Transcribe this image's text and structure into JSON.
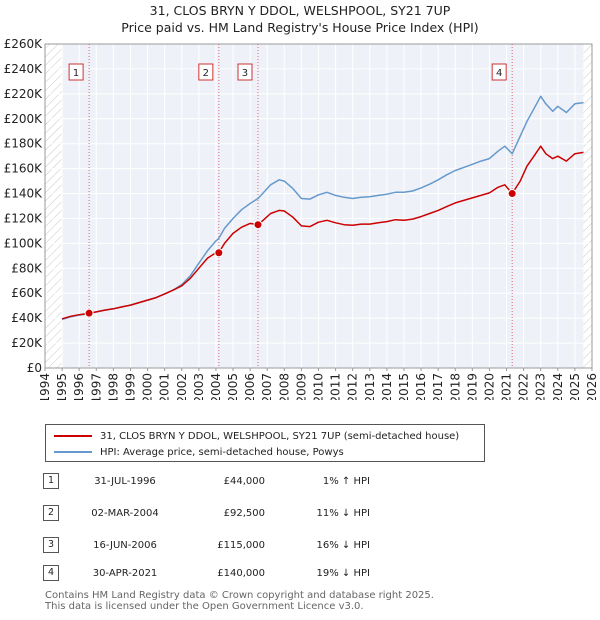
{
  "title_line1": "31, CLOS BRYN Y DDOL, WELSHPOOL, SY21 7UP",
  "title_line2": "Price paid vs. HM Land Registry's House Price Index (HPI)",
  "chart_data": {
    "type": "line",
    "xlim": [
      1994,
      2026
    ],
    "ylim": [
      0,
      260000
    ],
    "x_ticks": [
      1994,
      1995,
      1996,
      1997,
      1998,
      1999,
      2000,
      2001,
      2002,
      2003,
      2004,
      2005,
      2006,
      2007,
      2008,
      2009,
      2010,
      2011,
      2012,
      2013,
      2014,
      2015,
      2016,
      2017,
      2018,
      2019,
      2020,
      2021,
      2022,
      2023,
      2024,
      2025,
      2026
    ],
    "y_ticks": [
      0,
      20000,
      40000,
      60000,
      80000,
      100000,
      120000,
      140000,
      160000,
      180000,
      200000,
      220000,
      240000,
      260000
    ],
    "y_tick_labels": [
      "£0",
      "£20K",
      "£40K",
      "£60K",
      "£80K",
      "£100K",
      "£120K",
      "£140K",
      "£160K",
      "£180K",
      "£200K",
      "£220K",
      "£240K",
      "£260K"
    ],
    "data_start": 1995.0,
    "data_end": 2025.5,
    "grid": true,
    "series": [
      {
        "name": "31, CLOS BRYN Y DDOL, WELSHPOOL, SY21 7UP (semi-detached house)",
        "color": "#cc0000",
        "points": [
          [
            1995.0,
            39500
          ],
          [
            1995.5,
            41500
          ],
          [
            1996.0,
            42800
          ],
          [
            1996.58,
            44000
          ],
          [
            1997.0,
            45000
          ],
          [
            1997.5,
            46500
          ],
          [
            1998.0,
            47500
          ],
          [
            1998.5,
            49000
          ],
          [
            1999.0,
            50500
          ],
          [
            1999.5,
            52500
          ],
          [
            2000.0,
            54500
          ],
          [
            2000.5,
            56500
          ],
          [
            2001.0,
            59500
          ],
          [
            2001.5,
            62500
          ],
          [
            2002.0,
            66000
          ],
          [
            2002.5,
            72000
          ],
          [
            2003.0,
            80000
          ],
          [
            2003.5,
            88000
          ],
          [
            2004.0,
            92500
          ],
          [
            2004.17,
            92500
          ],
          [
            2004.5,
            100000
          ],
          [
            2005.0,
            108000
          ],
          [
            2005.5,
            113000
          ],
          [
            2006.0,
            116000
          ],
          [
            2006.46,
            115000
          ],
          [
            2006.8,
            119000
          ],
          [
            2007.2,
            124000
          ],
          [
            2007.7,
            126500
          ],
          [
            2008.0,
            126000
          ],
          [
            2008.5,
            121000
          ],
          [
            2009.0,
            114000
          ],
          [
            2009.5,
            113500
          ],
          [
            2010.0,
            117000
          ],
          [
            2010.5,
            118500
          ],
          [
            2011.0,
            116500
          ],
          [
            2011.5,
            115000
          ],
          [
            2012.0,
            114500
          ],
          [
            2012.5,
            115500
          ],
          [
            2013.0,
            115500
          ],
          [
            2013.5,
            116500
          ],
          [
            2014.0,
            117500
          ],
          [
            2014.5,
            119000
          ],
          [
            2015.0,
            118500
          ],
          [
            2015.5,
            119500
          ],
          [
            2016.0,
            121500
          ],
          [
            2016.5,
            124000
          ],
          [
            2017.0,
            126500
          ],
          [
            2017.5,
            129500
          ],
          [
            2018.0,
            132500
          ],
          [
            2018.5,
            134500
          ],
          [
            2019.0,
            136500
          ],
          [
            2019.5,
            138500
          ],
          [
            2020.0,
            140500
          ],
          [
            2020.5,
            145000
          ],
          [
            2020.9,
            147000
          ],
          [
            2021.33,
            140000
          ],
          [
            2021.8,
            150000
          ],
          [
            2022.2,
            162000
          ],
          [
            2022.6,
            170000
          ],
          [
            2023.0,
            178000
          ],
          [
            2023.3,
            172000
          ],
          [
            2023.7,
            168000
          ],
          [
            2024.0,
            170000
          ],
          [
            2024.5,
            166000
          ],
          [
            2025.0,
            172000
          ],
          [
            2025.5,
            173000
          ]
        ]
      },
      {
        "name": "HPI: Average price, semi-detached house, Powys",
        "color": "#6699cc",
        "points": [
          [
            1995.0,
            39000
          ],
          [
            1995.5,
            41000
          ],
          [
            1996.0,
            42500
          ],
          [
            1996.58,
            43500
          ],
          [
            1997.0,
            45000
          ],
          [
            1997.5,
            46500
          ],
          [
            1998.0,
            47500
          ],
          [
            1998.5,
            49000
          ],
          [
            1999.0,
            50500
          ],
          [
            1999.5,
            52500
          ],
          [
            2000.0,
            54500
          ],
          [
            2000.5,
            56500
          ],
          [
            2001.0,
            59500
          ],
          [
            2001.5,
            62500
          ],
          [
            2002.0,
            67000
          ],
          [
            2002.5,
            74000
          ],
          [
            2003.0,
            84000
          ],
          [
            2003.5,
            94000
          ],
          [
            2004.0,
            102000
          ],
          [
            2004.17,
            104000
          ],
          [
            2004.5,
            112000
          ],
          [
            2005.0,
            120000
          ],
          [
            2005.5,
            127000
          ],
          [
            2006.0,
            132000
          ],
          [
            2006.46,
            136000
          ],
          [
            2006.8,
            141000
          ],
          [
            2007.2,
            147000
          ],
          [
            2007.7,
            151000
          ],
          [
            2008.0,
            150000
          ],
          [
            2008.5,
            144000
          ],
          [
            2009.0,
            136000
          ],
          [
            2009.5,
            135500
          ],
          [
            2010.0,
            139000
          ],
          [
            2010.5,
            141000
          ],
          [
            2011.0,
            138500
          ],
          [
            2011.5,
            137000
          ],
          [
            2012.0,
            136000
          ],
          [
            2012.5,
            137000
          ],
          [
            2013.0,
            137500
          ],
          [
            2013.5,
            138500
          ],
          [
            2014.0,
            139500
          ],
          [
            2014.5,
            141000
          ],
          [
            2015.0,
            141000
          ],
          [
            2015.5,
            142000
          ],
          [
            2016.0,
            144500
          ],
          [
            2016.5,
            147500
          ],
          [
            2017.0,
            151000
          ],
          [
            2017.5,
            155000
          ],
          [
            2018.0,
            158500
          ],
          [
            2018.5,
            161000
          ],
          [
            2019.0,
            163500
          ],
          [
            2019.5,
            166000
          ],
          [
            2020.0,
            168000
          ],
          [
            2020.5,
            174000
          ],
          [
            2020.9,
            178000
          ],
          [
            2021.33,
            172000
          ],
          [
            2021.8,
            186000
          ],
          [
            2022.2,
            198000
          ],
          [
            2022.6,
            208000
          ],
          [
            2023.0,
            218000
          ],
          [
            2023.3,
            212000
          ],
          [
            2023.7,
            206000
          ],
          [
            2024.0,
            210000
          ],
          [
            2024.5,
            205000
          ],
          [
            2025.0,
            212000
          ],
          [
            2025.5,
            213000
          ]
        ]
      }
    ],
    "sales": [
      {
        "num": "1",
        "x": 1996.58,
        "value": 44000
      },
      {
        "num": "2",
        "x": 2004.17,
        "value": 92500
      },
      {
        "num": "3",
        "x": 2006.46,
        "value": 115000
      },
      {
        "num": "4",
        "x": 2021.33,
        "value": 140000
      }
    ]
  },
  "legend": {
    "property_label": "31, CLOS BRYN Y DDOL, WELSHPOOL, SY21 7UP (semi-detached house)",
    "hpi_label": "HPI: Average price, semi-detached house, Powys"
  },
  "table": [
    {
      "num": "1",
      "date": "31-JUL-1996",
      "price": "£44,000",
      "hpi": "1% ↑ HPI"
    },
    {
      "num": "2",
      "date": "02-MAR-2004",
      "price": "£92,500",
      "hpi": "11% ↓ HPI"
    },
    {
      "num": "3",
      "date": "16-JUN-2006",
      "price": "£115,000",
      "hpi": "16% ↓ HPI"
    },
    {
      "num": "4",
      "date": "30-APR-2021",
      "price": "£140,000",
      "hpi": "19% ↓ HPI"
    }
  ],
  "footer_line1": "Contains HM Land Registry data © Crown copyright and database right 2025.",
  "footer_line2": "This data is licensed under the Open Government Licence v3.0."
}
